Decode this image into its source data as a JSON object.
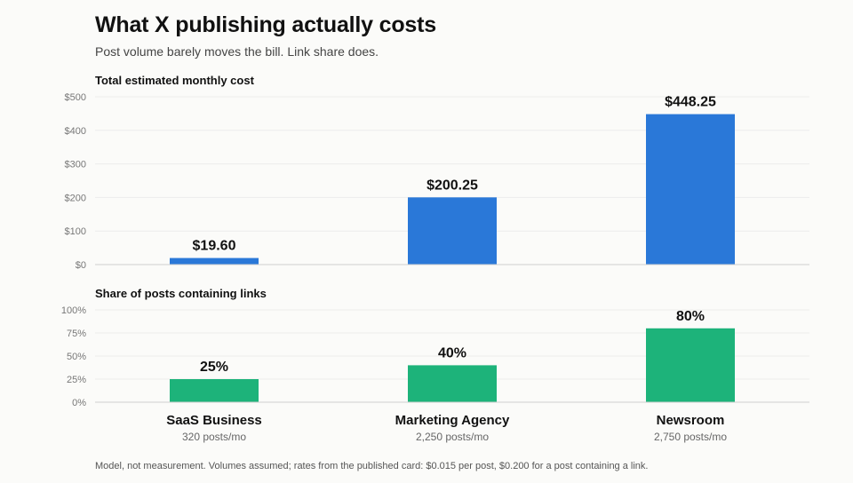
{
  "header": {
    "title": "What X publishing actually costs",
    "subtitle": "Post volume barely moves the bill. Link share does."
  },
  "footnote": "Model, not measurement. Volumes assumed; rates from the published card: $0.015 per post, $0.200 for a post containing a link.",
  "colors": {
    "cost": "#2a78d8",
    "links": "#1db37a"
  },
  "chart_data": [
    {
      "type": "bar",
      "title": "Total estimated monthly cost",
      "categories": [
        "SaaS Business",
        "Marketing Agency",
        "Newsroom"
      ],
      "category_subtitles": [
        "320 posts/mo",
        "2,250 posts/mo",
        "2,750 posts/mo"
      ],
      "values": [
        19.6,
        200.25,
        448.25
      ],
      "value_labels": [
        "$19.60",
        "$200.25",
        "$448.25"
      ],
      "ylim": [
        0,
        500
      ],
      "yticks": [
        0,
        100,
        200,
        300,
        400,
        500
      ],
      "ytick_labels": [
        "$0",
        "$100",
        "$200",
        "$300",
        "$400",
        "$500"
      ],
      "grid": true
    },
    {
      "type": "bar",
      "title": "Share of posts containing links",
      "categories": [
        "SaaS Business",
        "Marketing Agency",
        "Newsroom"
      ],
      "values": [
        25,
        40,
        80
      ],
      "value_labels": [
        "25%",
        "40%",
        "80%"
      ],
      "ylim": [
        0,
        100
      ],
      "yticks": [
        0,
        25,
        50,
        75,
        100
      ],
      "ytick_labels": [
        "0%",
        "25%",
        "50%",
        "75%",
        "100%"
      ],
      "grid": true
    }
  ]
}
